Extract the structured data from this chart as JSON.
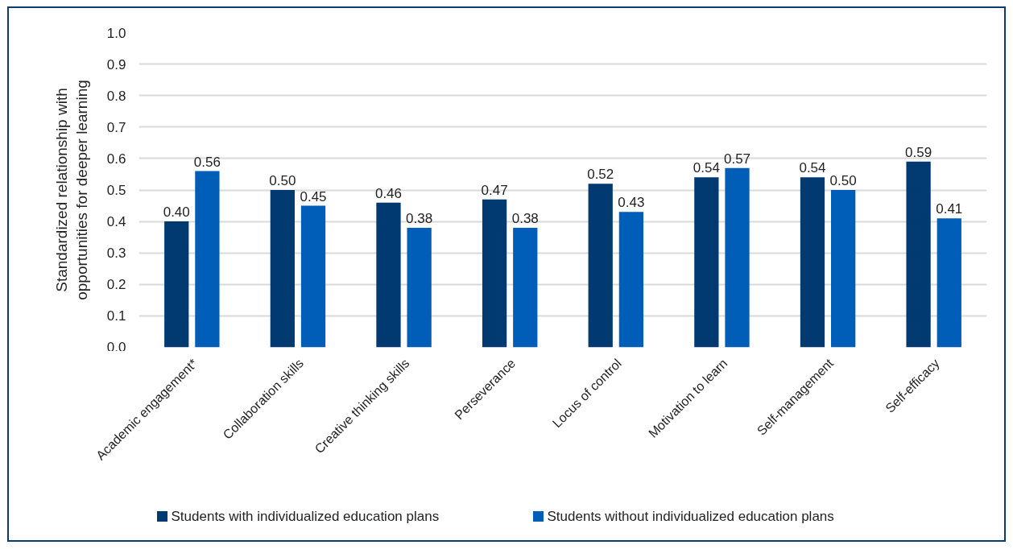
{
  "chart_data": {
    "type": "bar",
    "ylabel": "Standardized relationship with opportunities for deeper learning",
    "categories": [
      "Academic engagement*",
      "Collaboration skills",
      "Creative thinking skills",
      "Perseverance",
      "Locus of control",
      "Motivation to learn",
      "Self-management",
      "Self-efficacy"
    ],
    "series": [
      {
        "name": "Students with individualized education plans",
        "color": "#003a70",
        "values": [
          0.4,
          0.5,
          0.46,
          0.47,
          0.52,
          0.54,
          0.54,
          0.59
        ],
        "value_labels": [
          "0.40",
          "0.50",
          "0.46",
          "0.47",
          "0.52",
          "0.54",
          "0.54",
          "0.59"
        ]
      },
      {
        "name": "Students without individualized education plans",
        "color": "#005eb8",
        "values": [
          0.56,
          0.45,
          0.38,
          0.38,
          0.43,
          0.57,
          0.5,
          0.41
        ],
        "value_labels": [
          "0.56",
          "0.45",
          "0.38",
          "0.38",
          "0.43",
          "0.57",
          "0.50",
          "0.41"
        ]
      }
    ],
    "ylim": [
      0,
      1.0
    ],
    "yticks": [
      {
        "value": 0,
        "label": "0.0"
      },
      0.1,
      0.2,
      0.3,
      0.4,
      0.5,
      0.6,
      0.7,
      0.8,
      0.9,
      {
        "value": 1.0,
        "label": "1.0"
      }
    ],
    "grid": "y",
    "legend": "bottom"
  }
}
